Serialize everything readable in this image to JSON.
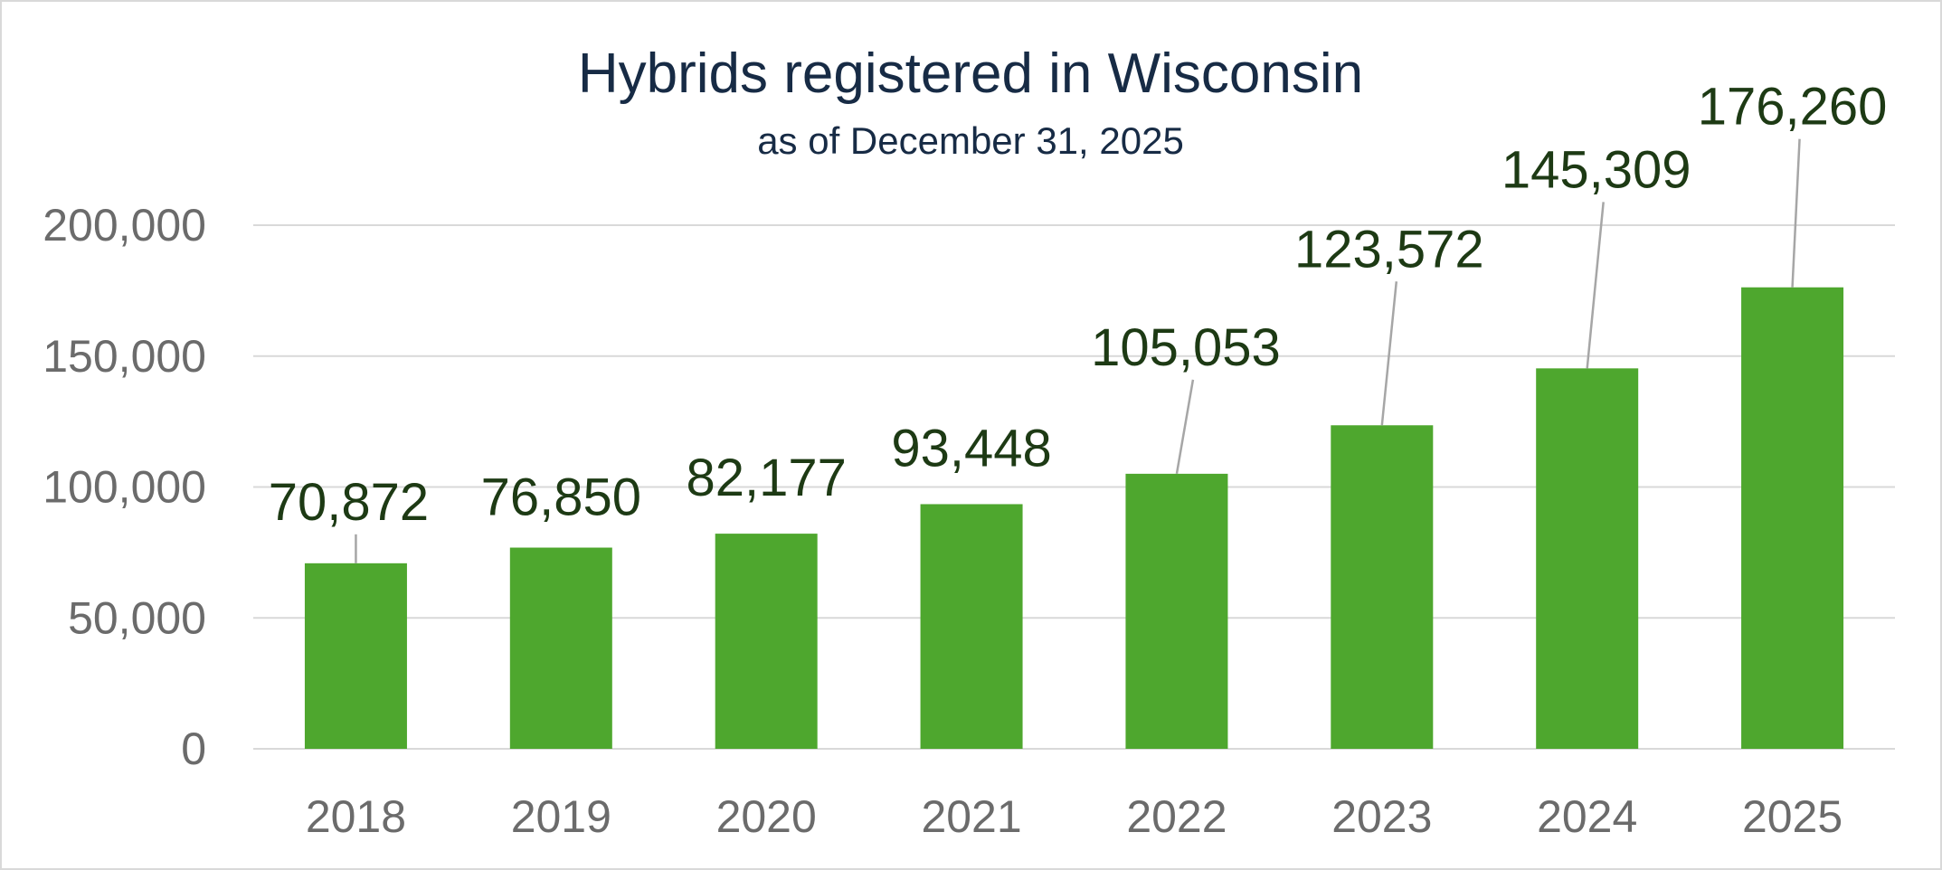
{
  "chart_data": {
    "type": "bar",
    "title": "Hybrids registered in Wisconsin",
    "subtitle": "as of December 31, 2025",
    "categories": [
      "2018",
      "2019",
      "2020",
      "2021",
      "2022",
      "2023",
      "2024",
      "2025"
    ],
    "values": [
      70872,
      76850,
      82177,
      93448,
      105053,
      123572,
      145309,
      176260
    ],
    "data_labels": [
      "70,872",
      "76,850",
      "82,177",
      "93,448",
      "105,053",
      "123,572",
      "145,309",
      "176,260"
    ],
    "y_ticks": [
      0,
      50000,
      100000,
      150000,
      200000
    ],
    "y_tick_labels": [
      "0",
      "50,000",
      "100,000",
      "150,000",
      "200,000"
    ],
    "ylim": [
      0,
      200000
    ],
    "grid": true,
    "legend": "none",
    "colors": {
      "bar": "#4ea72e",
      "data_label": "#1d3a14",
      "title": "#172b45",
      "gridline": "#d9d9d9",
      "axis_text": "#6b6b6b"
    }
  }
}
